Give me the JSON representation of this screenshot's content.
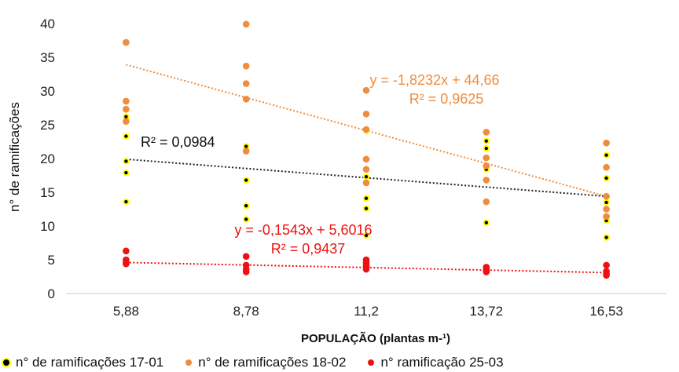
{
  "chart_data": {
    "type": "scatter",
    "xlabel": "POPULAÇÃO (plantas m-¹)",
    "ylabel": "n° de ramificações",
    "categories": [
      "5,88",
      "8,78",
      "11,2",
      "13,72",
      "16,53"
    ],
    "ylim": [
      0,
      40
    ],
    "yticks": [
      0,
      5,
      10,
      15,
      20,
      25,
      30,
      35,
      40
    ],
    "grid": false,
    "legend_position": "bottom",
    "series": [
      {
        "name": "n° de ramificações 17-01",
        "color": "#000000",
        "ring": "#ffff00",
        "points": [
          [
            1,
            26.2
          ],
          [
            1,
            23.3
          ],
          [
            1,
            19.6
          ],
          [
            1,
            17.9
          ],
          [
            1,
            13.6
          ],
          [
            2,
            21.8
          ],
          [
            2,
            16.8
          ],
          [
            2,
            13.0
          ],
          [
            2,
            11.0
          ],
          [
            3,
            24.1
          ],
          [
            3,
            17.3
          ],
          [
            3,
            14.1
          ],
          [
            3,
            12.6
          ],
          [
            3,
            8.6
          ],
          [
            4,
            22.6
          ],
          [
            4,
            21.5
          ],
          [
            4,
            18.4
          ],
          [
            4,
            10.5
          ],
          [
            5,
            20.5
          ],
          [
            5,
            17.1
          ],
          [
            5,
            13.5
          ],
          [
            5,
            10.8
          ],
          [
            5,
            8.3
          ]
        ],
        "trend": {
          "x0": 1,
          "y0": 19.9,
          "x1": 5,
          "y1": 14.4,
          "color": "#222222"
        },
        "annotation": {
          "text": "R² = 0,0984",
          "color": "#111111"
        }
      },
      {
        "name": "n° de ramificações 18-02",
        "color": "#f08c3c",
        "points": [
          [
            1,
            37.2
          ],
          [
            1,
            28.5
          ],
          [
            1,
            27.3
          ],
          [
            1,
            25.5
          ],
          [
            2,
            39.9
          ],
          [
            2,
            33.7
          ],
          [
            2,
            31.1
          ],
          [
            2,
            28.8
          ],
          [
            2,
            21.1
          ],
          [
            3,
            30.1
          ],
          [
            3,
            26.6
          ],
          [
            3,
            24.3
          ],
          [
            3,
            19.9
          ],
          [
            3,
            18.4
          ],
          [
            3,
            16.4
          ],
          [
            4,
            23.9
          ],
          [
            4,
            20.1
          ],
          [
            4,
            18.9
          ],
          [
            4,
            16.8
          ],
          [
            4,
            13.6
          ],
          [
            5,
            22.3
          ],
          [
            5,
            18.7
          ],
          [
            5,
            14.4
          ],
          [
            5,
            12.5
          ],
          [
            5,
            11.4
          ]
        ],
        "trend": {
          "x0": 1,
          "y0": 33.9,
          "x1": 5,
          "y1": 14.4,
          "color": "#f08c3c"
        },
        "annotation": {
          "lines": [
            "y = -1,8232x + 44,66",
            "R² = 0,9625"
          ],
          "color": "#f08c3c"
        }
      },
      {
        "name": "n° ramificação 25-03",
        "color": "#ee1111",
        "points": [
          [
            1,
            6.3
          ],
          [
            1,
            5.0
          ],
          [
            1,
            4.6
          ],
          [
            1,
            4.4
          ],
          [
            2,
            5.5
          ],
          [
            2,
            4.2
          ],
          [
            2,
            3.6
          ],
          [
            2,
            3.2
          ],
          [
            3,
            5.0
          ],
          [
            3,
            4.6
          ],
          [
            3,
            4.2
          ],
          [
            3,
            3.9
          ],
          [
            3,
            3.6
          ],
          [
            4,
            3.9
          ],
          [
            4,
            3.6
          ],
          [
            4,
            3.4
          ],
          [
            4,
            3.2
          ],
          [
            5,
            4.2
          ],
          [
            5,
            3.3
          ],
          [
            5,
            2.9
          ],
          [
            5,
            2.7
          ]
        ],
        "trend": {
          "x0": 1,
          "y0": 4.6,
          "x1": 5,
          "y1": 3.1,
          "color": "#ee1111"
        },
        "annotation": {
          "lines": [
            "y = -0,1543x + 5,6016",
            "R² = 0,9437"
          ],
          "color": "#ee1111"
        }
      }
    ]
  }
}
